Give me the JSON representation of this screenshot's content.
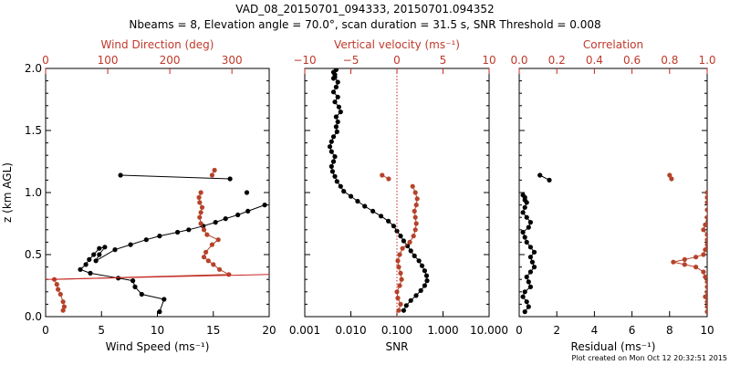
{
  "title": {
    "line1": "VAD_08_20150701_094333, 20150701.094352",
    "line2": "Nbeams = 8, Elevation angle = 70.0°, scan duration = 31.5 s, SNR Threshold = 0.008"
  },
  "footer": "Plot created on Mon Oct 12 20:32:51 2015",
  "colors": {
    "primary": "#000000",
    "secondary": "#b5432a",
    "axis_secondary": "#cc2222"
  },
  "chart_data": [
    {
      "type": "line",
      "ylabel": "z (km AGL)",
      "ylim": [
        0,
        2
      ],
      "yticks": [
        "0.0",
        "0.5",
        "1.0",
        "1.5",
        "2.0"
      ],
      "xlabel": "Wind Speed (ms⁻¹)",
      "xlim": [
        0,
        20
      ],
      "xticks": [
        "0",
        "5",
        "10",
        "15",
        "20"
      ],
      "x2label": "Wind Direction (deg)",
      "x2lim": [
        0,
        360
      ],
      "x2ticks": [
        "0",
        "100",
        "200",
        "300"
      ],
      "series": [
        {
          "axis": "primary",
          "markers": true,
          "x": [
            10.2,
            10.6,
            8.6,
            8.0,
            7.8,
            6.5,
            4.0,
            3.1,
            3.6,
            3.9,
            4.3,
            4.8,
            5.3,
            4.8,
            4.5,
            6.2,
            7.6,
            9.0,
            10.2,
            11.8,
            12.8,
            14.1,
            15.2,
            16.1,
            17.2,
            18.1,
            19.6
          ],
          "y": [
            0.04,
            0.14,
            0.18,
            0.24,
            0.29,
            0.31,
            0.35,
            0.38,
            0.42,
            0.46,
            0.5,
            0.55,
            0.56,
            0.5,
            0.45,
            0.54,
            0.58,
            0.62,
            0.65,
            0.68,
            0.7,
            0.73,
            0.76,
            0.79,
            0.82,
            0.85,
            0.9
          ]
        },
        {
          "axis": "primary",
          "markers": true,
          "x": [
            6.7,
            16.5
          ],
          "y": [
            1.14,
            1.11
          ]
        },
        {
          "axis": "primary",
          "markers": true,
          "x": [
            18.0
          ],
          "y": [
            1.0
          ]
        },
        {
          "axis": "secondary",
          "markers": true,
          "x": [
            28,
            30,
            28,
            24,
            20,
            18,
            14,
            295,
            280,
            270,
            262,
            255,
            258,
            268,
            278,
            260,
            255,
            250,
            248,
            250,
            252,
            248,
            247,
            250
          ],
          "y": [
            0.05,
            0.08,
            0.12,
            0.18,
            0.22,
            0.26,
            0.3,
            0.34,
            0.38,
            0.42,
            0.45,
            0.48,
            0.52,
            0.58,
            0.62,
            0.66,
            0.7,
            0.75,
            0.8,
            0.84,
            0.88,
            0.92,
            0.96,
            1.0
          ]
        },
        {
          "axis": "secondary",
          "markers": true,
          "x": [
            268,
            272
          ],
          "y": [
            1.14,
            1.18
          ]
        },
        {
          "axis": "secondary",
          "markers": false,
          "x": [
            0,
            360
          ],
          "y": [
            0.3,
            0.34
          ]
        }
      ]
    },
    {
      "type": "line",
      "xlabel": "SNR",
      "xscale": "log",
      "xlim": [
        0.001,
        10
      ],
      "xticks": [
        "0.001",
        "0.010",
        "0.100",
        "1.000",
        "10.000"
      ],
      "x2label": "Vertical velocity (ms⁻¹)",
      "x2lim": [
        -10,
        10
      ],
      "x2ticks": [
        "−10",
        "−5",
        "0",
        "5",
        "10"
      ],
      "series": [
        {
          "axis": "primary",
          "markers": true,
          "x": [
            0.14,
            0.16,
            0.2,
            0.26,
            0.33,
            0.4,
            0.45,
            0.44,
            0.4,
            0.35,
            0.3,
            0.24,
            0.2,
            0.17,
            0.14,
            0.12,
            0.1,
            0.085,
            0.065,
            0.045,
            0.03,
            0.02,
            0.014,
            0.01,
            0.007,
            0.006,
            0.005,
            0.0045,
            0.004,
            0.0038,
            0.0042,
            0.0045,
            0.0038,
            0.0035,
            0.0038,
            0.0042,
            0.005,
            0.0048,
            0.0052,
            0.0048,
            0.006,
            0.0055,
            0.0045,
            0.0052,
            0.0042,
            0.0048,
            0.0052,
            0.0045,
            0.0042,
            0.0048,
            0.0045,
            0.0042
          ],
          "y": [
            0.05,
            0.09,
            0.13,
            0.17,
            0.21,
            0.25,
            0.29,
            0.33,
            0.37,
            0.41,
            0.45,
            0.49,
            0.53,
            0.57,
            0.61,
            0.65,
            0.69,
            0.73,
            0.77,
            0.81,
            0.85,
            0.89,
            0.93,
            0.97,
            1.01,
            1.05,
            1.09,
            1.13,
            1.17,
            1.21,
            1.25,
            1.29,
            1.33,
            1.37,
            1.41,
            1.45,
            1.49,
            1.53,
            1.57,
            1.61,
            1.65,
            1.69,
            1.73,
            1.77,
            1.81,
            1.85,
            1.89,
            1.93,
            1.97,
            1.99,
            1.95,
            1.92
          ]
        },
        {
          "axis": "secondary",
          "markers": true,
          "x": [
            0.2,
            0.4,
            0.1,
            0.0,
            0.3,
            0.5,
            0.4,
            0.2,
            0.1,
            0.3,
            0.6,
            1.4,
            1.8,
            2.0,
            2.1,
            2.0,
            1.9,
            2.1,
            2.2,
            2.0,
            1.7
          ],
          "y": [
            0.05,
            0.1,
            0.15,
            0.2,
            0.25,
            0.3,
            0.35,
            0.4,
            0.45,
            0.5,
            0.55,
            0.6,
            0.65,
            0.7,
            0.75,
            0.8,
            0.85,
            0.9,
            0.95,
            1.0,
            1.05
          ]
        },
        {
          "axis": "secondary",
          "markers": true,
          "x": [
            -1.6,
            -0.9
          ],
          "y": [
            1.14,
            1.11
          ]
        },
        {
          "axis": "secondary",
          "markers": false,
          "dotted": true,
          "x": [
            0,
            0
          ],
          "y": [
            0,
            2
          ]
        }
      ]
    },
    {
      "type": "line",
      "xlabel": "Residual (ms⁻¹)",
      "xlim": [
        0,
        10
      ],
      "xticks": [
        "0",
        "2",
        "4",
        "6",
        "8",
        "10"
      ],
      "x2label": "Correlation",
      "x2lim": [
        0,
        1
      ],
      "x2ticks": [
        "0.0",
        "0.2",
        "0.4",
        "0.6",
        "0.8",
        "1.0"
      ],
      "series": [
        {
          "axis": "primary",
          "markers": true,
          "x": [
            0.3,
            0.5,
            0.4,
            0.2,
            0.3,
            0.6,
            0.5,
            0.4,
            0.6,
            0.8,
            0.7,
            0.6,
            0.8,
            0.6,
            0.4,
            0.3,
            0.2,
            0.5,
            0.6,
            0.4,
            0.2,
            0.3,
            0.4,
            0.3,
            0.2,
            0.3
          ],
          "y": [
            0.04,
            0.08,
            0.12,
            0.16,
            0.2,
            0.24,
            0.28,
            0.32,
            0.36,
            0.4,
            0.44,
            0.48,
            0.52,
            0.56,
            0.6,
            0.64,
            0.68,
            0.72,
            0.76,
            0.8,
            0.84,
            0.88,
            0.92,
            0.96,
            0.98,
            0.94
          ]
        },
        {
          "axis": "primary",
          "markers": true,
          "x": [
            1.1,
            1.6
          ],
          "y": [
            1.14,
            1.1
          ]
        },
        {
          "axis": "secondary",
          "markers": true,
          "x": [
            1.0,
            1.0,
            1.0,
            0.99,
            1.0,
            1.0,
            1.0,
            0.99,
            0.98,
            0.94,
            0.88,
            0.82,
            0.88,
            0.94,
            0.98,
            0.99,
            1.0,
            1.0,
            1.0,
            0.98,
            0.99,
            1.0,
            1.0,
            1.0,
            1.0,
            1.0
          ],
          "y": [
            0.04,
            0.08,
            0.12,
            0.16,
            0.2,
            0.24,
            0.28,
            0.32,
            0.36,
            0.4,
            0.42,
            0.44,
            0.46,
            0.48,
            0.5,
            0.54,
            0.58,
            0.62,
            0.66,
            0.7,
            0.74,
            0.8,
            0.86,
            0.92,
            0.96,
            1.0
          ]
        },
        {
          "axis": "secondary",
          "markers": true,
          "x": [
            0.8,
            0.81
          ],
          "y": [
            1.14,
            1.11
          ]
        }
      ]
    }
  ]
}
